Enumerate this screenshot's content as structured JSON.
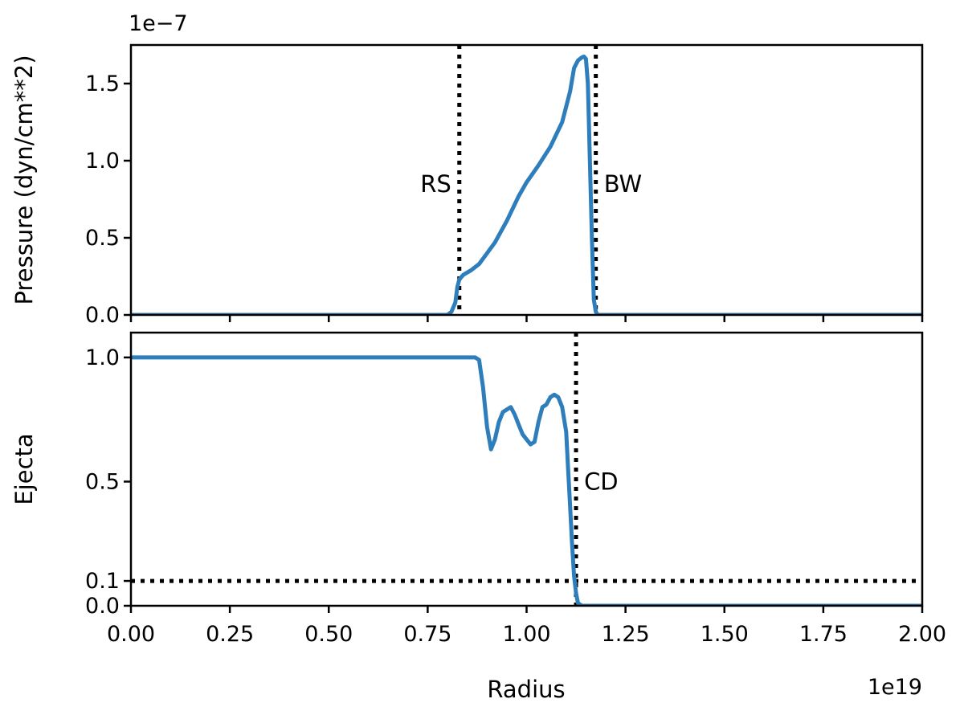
{
  "chart_data": [
    {
      "type": "line",
      "panel": "top",
      "ylabel": "Pressure (dyn/cm**2)",
      "y_offset_text": "1e−7",
      "xlim": [
        0.0,
        2.0
      ],
      "ylim": [
        0.0,
        1.75
      ],
      "grid": false,
      "yticks": [
        0.0,
        0.5,
        1.0,
        1.5
      ],
      "ytick_labels": [
        "0.0",
        "0.5",
        "1.0",
        "1.5"
      ],
      "color": "#2e7ebc",
      "series": [
        {
          "x": [
            0.0,
            0.8,
            0.81,
            0.82,
            0.825,
            0.83,
            0.84,
            0.86,
            0.88,
            0.9,
            0.92,
            0.95,
            0.98,
            1.0,
            1.03,
            1.06,
            1.09,
            1.11,
            1.12,
            1.13,
            1.14,
            1.145,
            1.15,
            1.155,
            1.16,
            1.165,
            1.17,
            1.175,
            1.18,
            1.19,
            2.0
          ],
          "y": [
            0.0,
            0.0,
            0.02,
            0.08,
            0.18,
            0.23,
            0.26,
            0.29,
            0.33,
            0.4,
            0.47,
            0.61,
            0.77,
            0.86,
            0.97,
            1.09,
            1.25,
            1.45,
            1.6,
            1.65,
            1.67,
            1.675,
            1.66,
            1.5,
            1.0,
            0.5,
            0.1,
            0.02,
            0.0,
            0.0,
            0.0
          ]
        }
      ],
      "vlines": [
        {
          "x": 0.83,
          "label": "RS",
          "label_side": "left",
          "label_y": 0.85
        },
        {
          "x": 1.175,
          "label": "BW",
          "label_side": "right",
          "label_y": 0.85
        }
      ]
    },
    {
      "type": "line",
      "panel": "bottom",
      "xlabel": "Radius",
      "x_offset_text": "1e19",
      "ylabel": "Ejecta",
      "xlim": [
        0.0,
        2.0
      ],
      "ylim": [
        0.0,
        1.1
      ],
      "grid": false,
      "xticks": [
        0.0,
        0.25,
        0.5,
        0.75,
        1.0,
        1.25,
        1.5,
        1.75,
        2.0
      ],
      "xtick_labels": [
        "0.00",
        "0.25",
        "0.50",
        "0.75",
        "1.00",
        "1.25",
        "1.50",
        "1.75",
        "2.00"
      ],
      "yticks": [
        0.0,
        0.1,
        0.5,
        1.0
      ],
      "ytick_labels": [
        "0.0",
        "0.1",
        "0.5",
        "1.0"
      ],
      "color": "#2e7ebc",
      "series": [
        {
          "x": [
            0.0,
            0.87,
            0.88,
            0.89,
            0.9,
            0.91,
            0.92,
            0.93,
            0.94,
            0.95,
            0.96,
            0.97,
            0.98,
            0.99,
            1.0,
            1.01,
            1.02,
            1.03,
            1.04,
            1.05,
            1.06,
            1.07,
            1.08,
            1.09,
            1.1,
            1.105,
            1.11,
            1.115,
            1.12,
            1.125,
            1.13,
            1.14,
            1.16,
            2.0
          ],
          "y": [
            1.0,
            1.0,
            0.99,
            0.88,
            0.72,
            0.63,
            0.67,
            0.74,
            0.78,
            0.79,
            0.8,
            0.77,
            0.73,
            0.69,
            0.67,
            0.65,
            0.66,
            0.74,
            0.8,
            0.81,
            0.84,
            0.85,
            0.84,
            0.8,
            0.7,
            0.55,
            0.4,
            0.25,
            0.12,
            0.05,
            0.01,
            0.0,
            0.0,
            0.0
          ]
        }
      ],
      "vlines": [
        {
          "x": 1.125,
          "label": "CD",
          "label_side": "right",
          "label_y": 0.5
        }
      ],
      "hlines": [
        {
          "y": 0.1
        }
      ]
    }
  ]
}
